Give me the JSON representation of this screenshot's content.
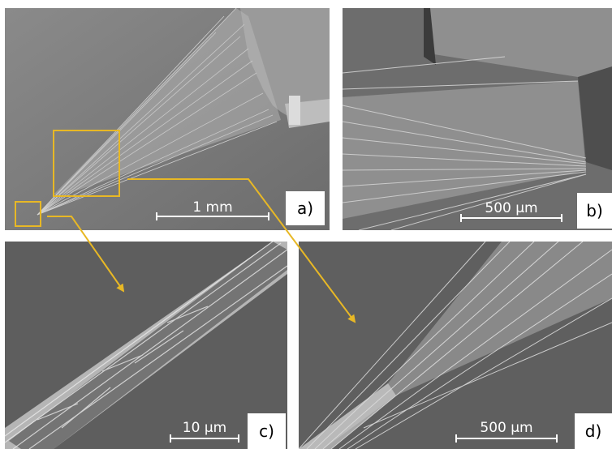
{
  "panels": {
    "a": {
      "label": "a)",
      "scale": "1 mm"
    },
    "b": {
      "label": "b)",
      "scale": "500 µm"
    },
    "c": {
      "label": "c)",
      "scale": "10 µm"
    },
    "d": {
      "label": "d)",
      "scale": "500 µm"
    }
  },
  "colors": {
    "annotation": "#e8b825",
    "background_dark": "#5a5a5a",
    "fiber": "#e6e6e6",
    "label_box": "#ffffff"
  }
}
